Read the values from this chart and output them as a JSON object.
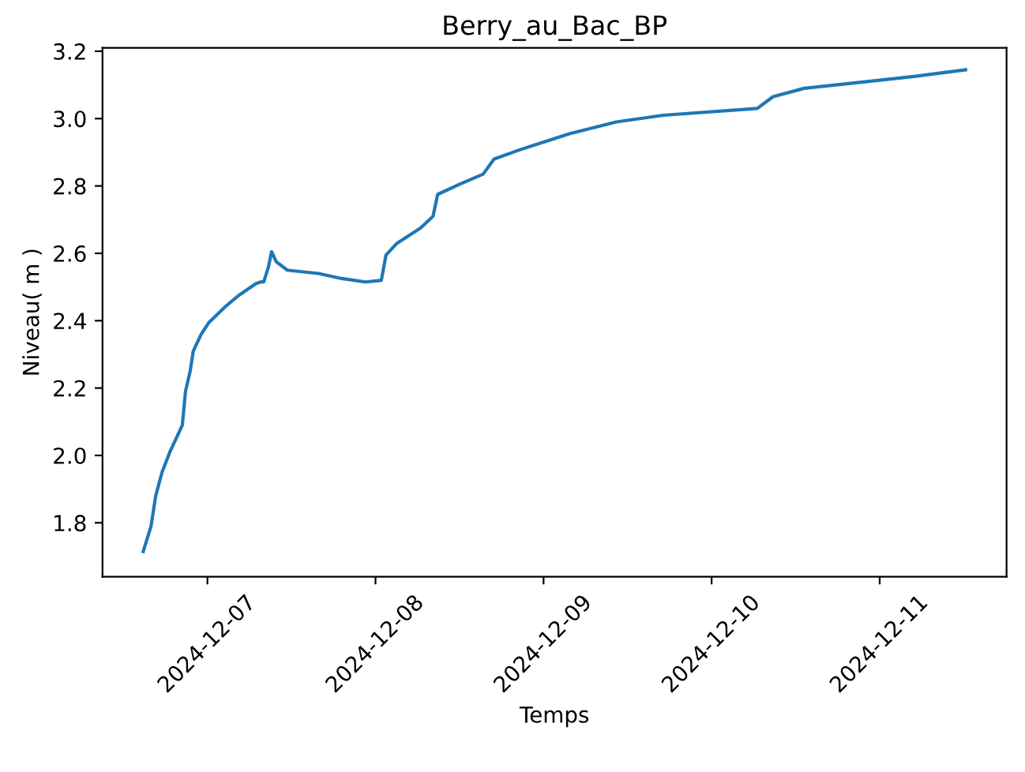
{
  "chart_data": {
    "type": "line",
    "title": "Berry_au_Bac_BP",
    "xlabel": "Temps",
    "ylabel": "Niveau( m )",
    "x": [
      "2024-12-06T14:50",
      "2024-12-06T15:57",
      "2024-12-06T16:37",
      "2024-12-06T17:31",
      "2024-12-06T18:38",
      "2024-12-06T19:45",
      "2024-12-06T20:25",
      "2024-12-06T20:52",
      "2024-12-06T21:32",
      "2024-12-06T21:59",
      "2024-12-06T23:07",
      "2024-12-07T00:13",
      "2024-12-07T02:28",
      "2024-12-07T04:28",
      "2024-12-07T06:56",
      "2024-12-07T07:36",
      "2024-12-07T08:03",
      "2024-12-07T08:43",
      "2024-12-07T09:10",
      "2024-12-07T09:50",
      "2024-12-07T11:25",
      "2024-12-07T15:53",
      "2024-12-07T19:14",
      "2024-12-07T22:36",
      "2024-12-08T00:50",
      "2024-12-08T01:30",
      "2024-12-08T03:04",
      "2024-12-08T06:25",
      "2024-12-08T08:13",
      "2024-12-08T08:53",
      "2024-12-08T12:01",
      "2024-12-08T15:22",
      "2024-12-08T16:56",
      "2024-12-08T20:58",
      "2024-12-09T03:40",
      "2024-12-09T10:23",
      "2024-12-09T17:06",
      "2024-12-10T06:31",
      "2024-12-10T08:46",
      "2024-12-10T13:14",
      "2024-12-10T22:10",
      "2024-12-11T04:53",
      "2024-12-11T12:16"
    ],
    "series": [
      {
        "color": "#1f77b4",
        "values": [
          1.715,
          1.79,
          1.88,
          1.95,
          2.01,
          2.06,
          2.09,
          2.19,
          2.25,
          2.31,
          2.36,
          2.395,
          2.44,
          2.475,
          2.51,
          2.515,
          2.515,
          2.56,
          2.605,
          2.575,
          2.55,
          2.54,
          2.525,
          2.515,
          2.52,
          2.595,
          2.63,
          2.675,
          2.71,
          2.775,
          2.805,
          2.835,
          2.88,
          2.91,
          2.955,
          2.99,
          3.01,
          3.03,
          3.065,
          3.09,
          3.11,
          3.125,
          3.145
        ]
      }
    ],
    "xlim": [
      "2024-12-06T09:01",
      "2024-12-11T18:07"
    ],
    "xticks": [
      "2024-12-07",
      "2024-12-08",
      "2024-12-09",
      "2024-12-10",
      "2024-12-11"
    ],
    "ylim": [
      1.64,
      3.21
    ],
    "yticks": [
      1.8,
      {
        "value": 2.0,
        "label": "2.0"
      },
      2.2,
      2.4,
      2.6,
      2.8,
      {
        "value": 3.0,
        "label": "3.0"
      },
      3.2
    ],
    "grid": false,
    "legend": false,
    "marker": "none",
    "line_style": "solid"
  }
}
